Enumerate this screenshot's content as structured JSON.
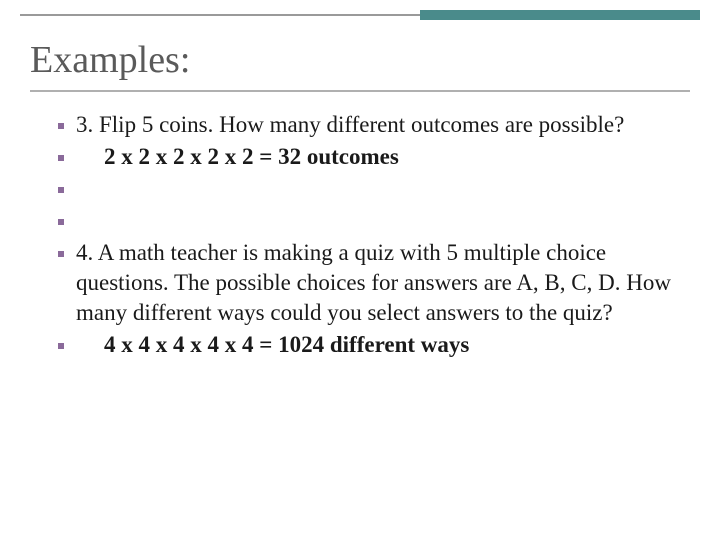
{
  "header": {
    "accent_gray": "#9a9a9a",
    "accent_teal": "#4a8b8b"
  },
  "title": "Examples:",
  "title_color": "#5a5a5a",
  "title_fontsize": 38,
  "bullet_color": "#8a6a9a",
  "body_fontsize": 23,
  "items": [
    {
      "text": "3.  Flip 5 coins.  How many different outcomes are possible?",
      "bold": false,
      "indent": false
    },
    {
      "text": "2 x 2 x 2 x 2 x 2 = 32 outcomes",
      "bold": true,
      "indent": true
    },
    {
      "text": "",
      "bold": false,
      "indent": false
    },
    {
      "text": "",
      "bold": false,
      "indent": false
    },
    {
      "text": "4.  A math teacher is making a quiz with 5 multiple choice questions.  The possible choices for answers are  A, B, C, D. How many different ways could you select answers to the quiz?",
      "bold": false,
      "indent": false
    },
    {
      "text": "4 x 4 x 4 x 4 x 4 = 1024 different ways",
      "bold": true,
      "indent": true
    }
  ]
}
